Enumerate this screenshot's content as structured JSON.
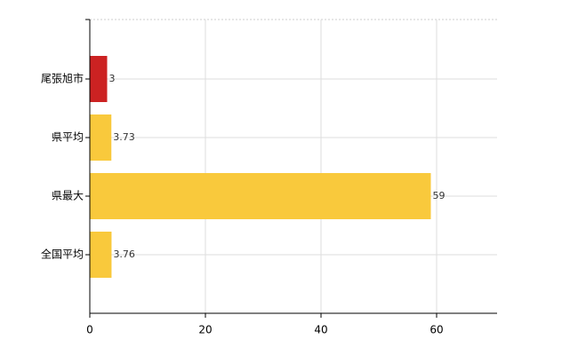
{
  "chart_data": {
    "type": "hbar",
    "categories": [
      "尾張旭市",
      "県平均",
      "県最大",
      "全国平均"
    ],
    "values": [
      3,
      3.73,
      59,
      3.76
    ],
    "colors": [
      "#cc2222",
      "#f9c93c",
      "#f9c93c",
      "#f9c93c"
    ],
    "xlim": [
      0,
      70
    ],
    "xticks": [
      0,
      20,
      40,
      60
    ],
    "grid": true
  }
}
